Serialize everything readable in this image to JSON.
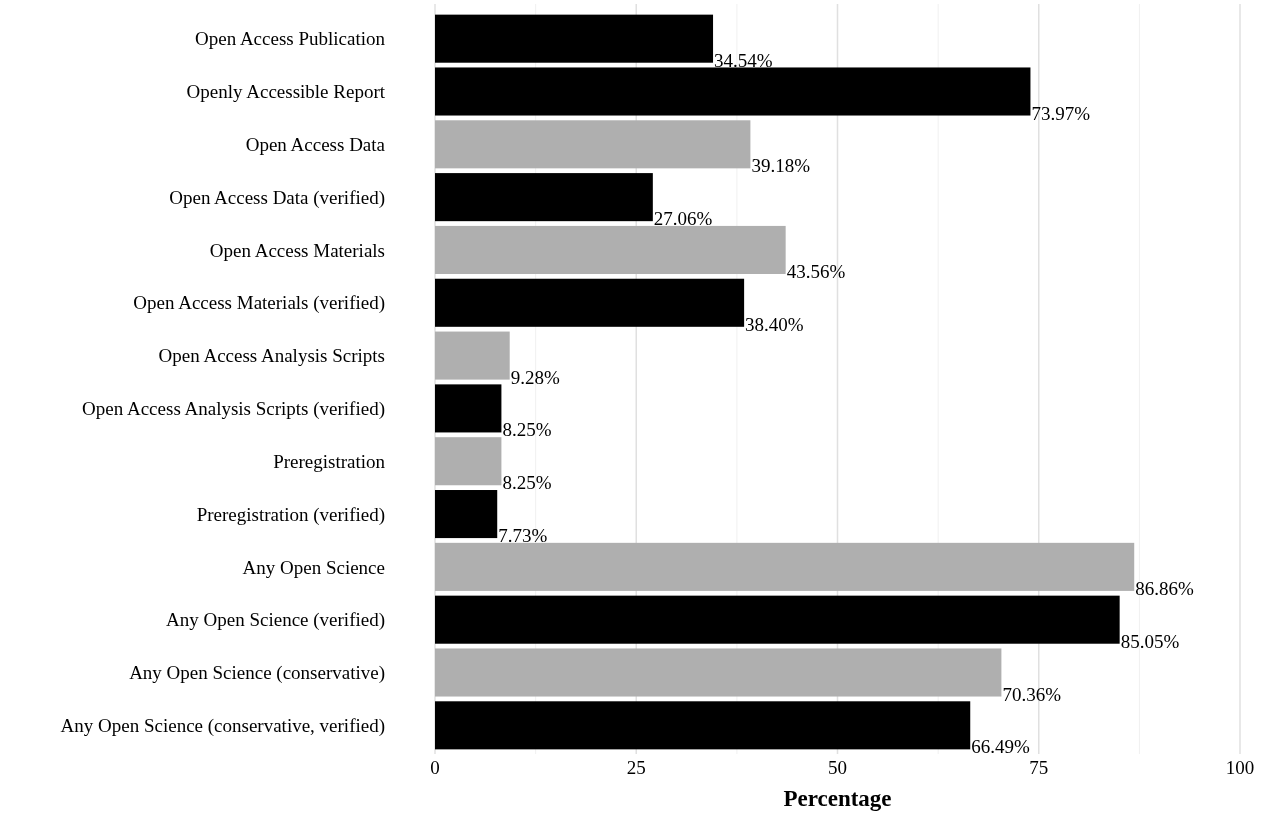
{
  "chart_data": {
    "type": "bar",
    "orientation": "horizontal",
    "xlabel": "Percentage",
    "categories": [
      "Open Access Publication",
      "Openly Accessible Report",
      "Open Access Data",
      "Open Access Data (verified)",
      "Open Access Materials",
      "Open Access Materials (verified)",
      "Open Access Analysis Scripts",
      "Open Access Analysis Scripts (verified)",
      "Preregistration",
      "Preregistration (verified)",
      "Any Open Science",
      "Any Open Science (verified)",
      "Any Open Science (conservative)",
      "Any Open Science (conservative, verified)"
    ],
    "values": [
      34.54,
      73.97,
      39.18,
      27.06,
      43.56,
      38.4,
      9.28,
      8.25,
      8.25,
      7.73,
      86.86,
      85.05,
      70.36,
      66.49
    ],
    "colors": [
      "#000000",
      "#000000",
      "#afafaf",
      "#000000",
      "#afafaf",
      "#000000",
      "#afafaf",
      "#000000",
      "#afafaf",
      "#000000",
      "#afafaf",
      "#000000",
      "#afafaf",
      "#000000"
    ],
    "value_labels": [
      "34.54%",
      "73.97%",
      "39.18%",
      "27.06%",
      "43.56%",
      "38.40%",
      "9.28%",
      "8.25%",
      "8.25%",
      "7.73%",
      "86.86%",
      "85.05%",
      "70.36%",
      "66.49%"
    ],
    "xlim": [
      0,
      100
    ],
    "xticks": [
      0,
      {
        "value": 12.5,
        "label": null
      },
      25,
      {
        "value": 37.5,
        "label": null
      },
      50,
      {
        "value": 62.5,
        "label": null
      },
      75,
      {
        "value": 87.5,
        "label": null
      },
      100
    ],
    "grid": "x"
  }
}
